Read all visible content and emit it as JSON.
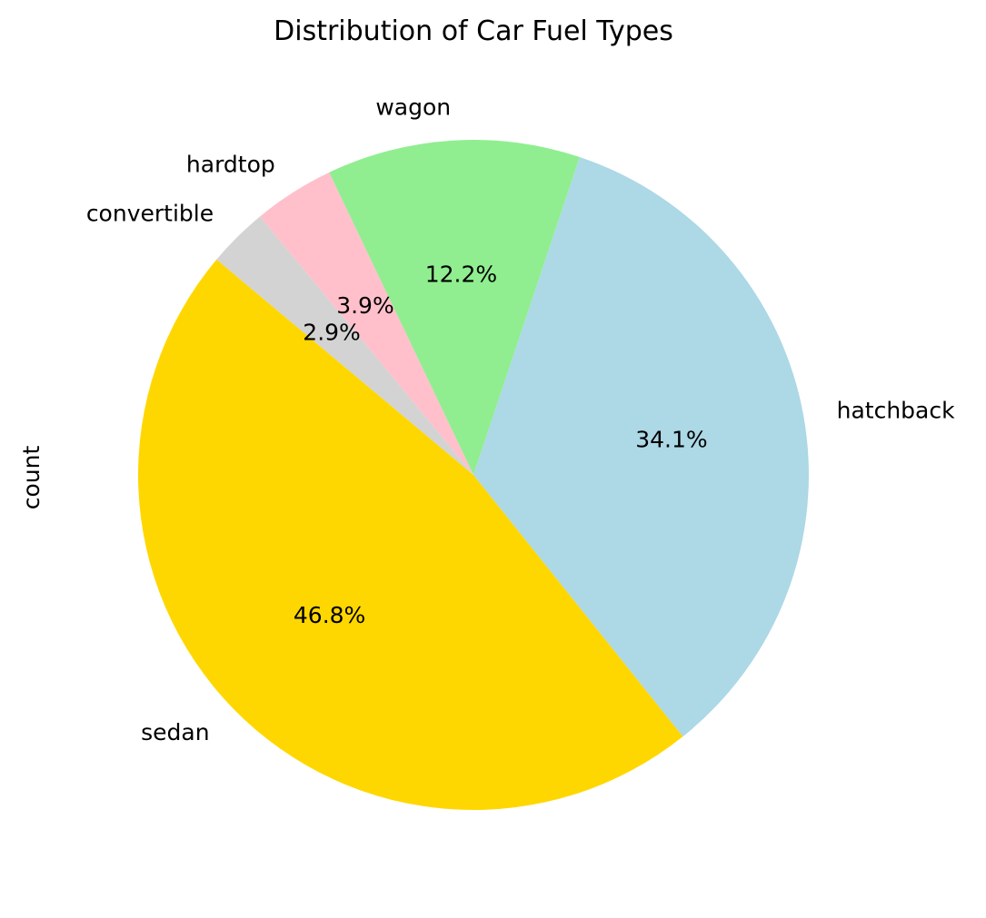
{
  "chart_data": {
    "type": "pie",
    "title": "Distribution of Car Fuel Types",
    "ylabel": "count",
    "categories": [
      "sedan",
      "hatchback",
      "wagon",
      "hardtop",
      "convertible"
    ],
    "values": [
      46.8,
      34.1,
      12.2,
      3.9,
      2.9
    ],
    "labels_pct": [
      "46.8%",
      "34.1%",
      "12.2%",
      "3.9%",
      "2.9%"
    ],
    "colors": [
      "#FFD700",
      "#ADD8E6",
      "#90EE90",
      "#FFC0CB",
      "#D3D3D3"
    ],
    "start_angle_deg": 140,
    "direction": "counterclockwise"
  }
}
